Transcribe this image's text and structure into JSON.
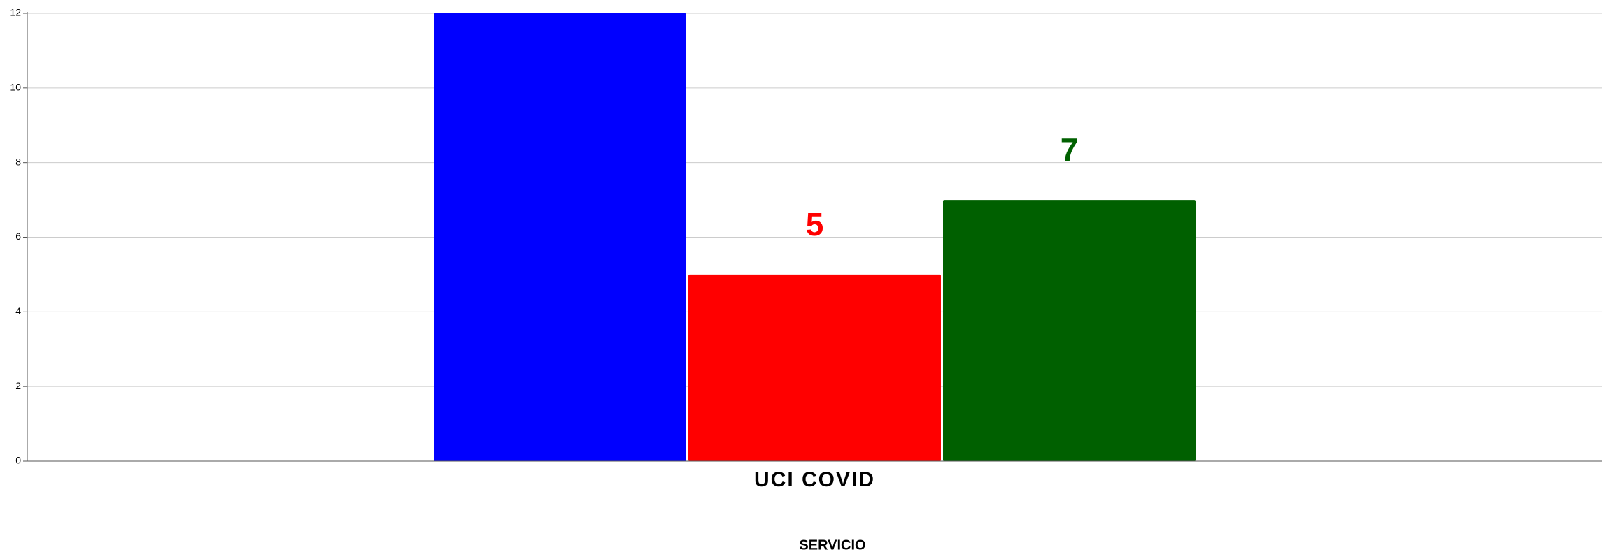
{
  "chart_data": {
    "type": "bar",
    "x_label": "SERVICIO",
    "categories": [
      "UCI COVID"
    ],
    "series": [
      {
        "color": "#0000ff",
        "values": [
          12
        ],
        "show_labels": false
      },
      {
        "color": "#ff0000",
        "values": [
          5
        ],
        "show_labels": true
      },
      {
        "color": "#006000",
        "values": [
          7
        ],
        "show_labels": true
      }
    ],
    "ylim": [
      0,
      12
    ],
    "yticks": [
      0,
      2,
      4,
      6,
      8,
      10,
      12
    ],
    "grid": true
  }
}
